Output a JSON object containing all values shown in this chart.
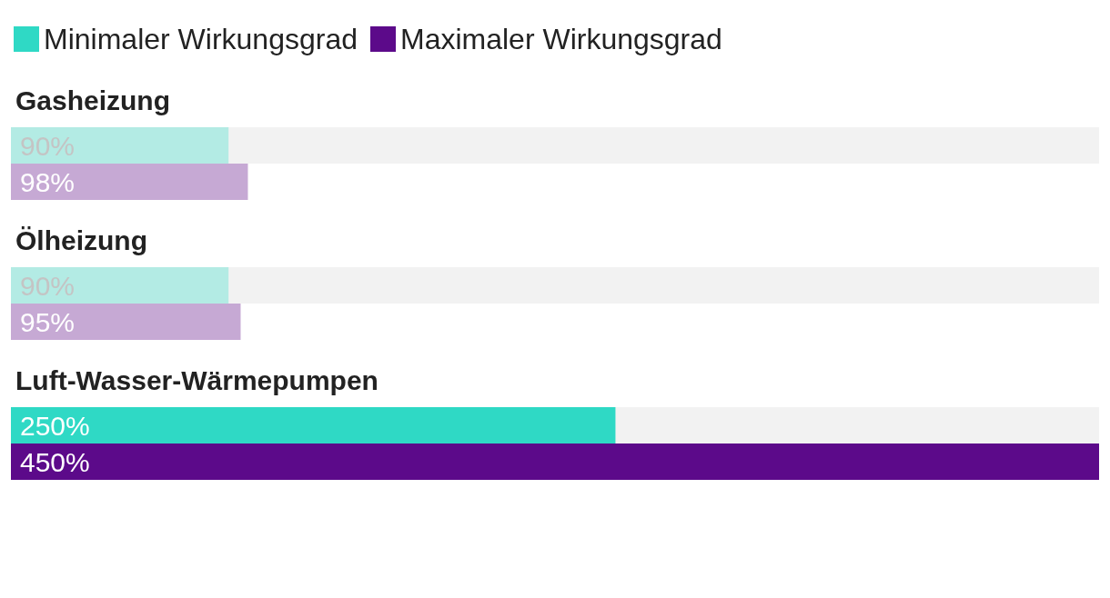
{
  "chart_data": {
    "type": "bar",
    "orientation": "horizontal",
    "categories": [
      "Gasheizung",
      "Ölheizung",
      "Luft-Wasser-Wärmepumpen"
    ],
    "series": [
      {
        "name": "Minimaler Wirkungsgrad",
        "color": "#2fd9c5",
        "colors": [
          "#b3ebe4",
          "#b3ebe4",
          "#2fd9c5"
        ],
        "values": [
          90,
          90,
          250
        ],
        "value_labels": [
          "90%",
          "90%",
          "250%"
        ]
      },
      {
        "name": "Maximaler Wirkungsgrad",
        "color": "#5c0a8a",
        "colors": [
          "#c6a9d4",
          "#c6a9d4",
          "#5c0a8a"
        ],
        "values": [
          98,
          95,
          450
        ],
        "value_labels": [
          "98%",
          "95%",
          "450%"
        ]
      }
    ],
    "xlim": [
      0,
      450
    ],
    "tick_labels": false,
    "legend": "top left"
  }
}
